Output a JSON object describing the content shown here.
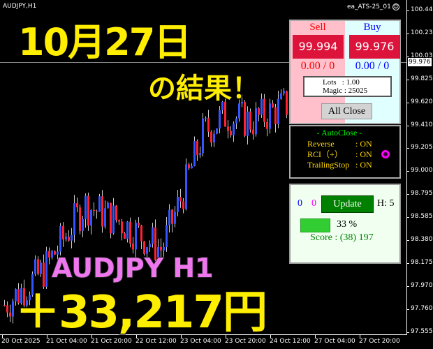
{
  "chart": {
    "symbol_label": "AUDJPY,H1",
    "ea_label": "ea_ATS-25_01",
    "ea_status_icon": "sad-face-icon",
    "current_price": "99.976",
    "price_ticks": [
      "100.445",
      "100.235",
      "100.030",
      "99.825",
      "99.620",
      "99.410",
      "99.205",
      "99.000",
      "98.795",
      "98.585",
      "98.380",
      "98.175",
      "97.970",
      "97.760",
      "97.555"
    ],
    "time_ticks": [
      "20 Oct 2025",
      "21 Oct 04:00",
      "21 Oct 20:00",
      "22 Oct 12:00",
      "23 Oct 04:00",
      "23 Oct 20:00",
      "24 Oct 12:00",
      "27 Oct 04:00",
      "27 Oct 20:00"
    ],
    "up_color": "#3355ff",
    "down_color": "#ff2233"
  },
  "overlay": {
    "date": "10月27日",
    "result": "の結果！",
    "pair": "AUDJPY H1",
    "profit": "＋33,217円"
  },
  "trade_panel": {
    "sell_label": "Sell",
    "buy_label": "Buy",
    "sell_price": "99.994",
    "buy_price": "99.976",
    "sell_pl": "0.00 / 0",
    "buy_pl": "0.00 / 0",
    "lots": "Lots   : 1.00",
    "magic": "Magic : 25025",
    "all_close": "All Close"
  },
  "autoclose_panel": {
    "title": "- AutoClose -",
    "rows": [
      {
        "label": "Reverse",
        "value": ": ON"
      },
      {
        "label": "RCI（+）",
        "value": ": ON"
      },
      {
        "label": "TrailingStop",
        "value": ": ON"
      }
    ],
    "indicator_color": "#ff00ff"
  },
  "score_panel": {
    "count_blue": "0",
    "count_magenta": "0",
    "update": "Update",
    "h_label": "H: 5",
    "progress_percent": 33,
    "progress_label": "33 %",
    "score": "Score : (38) 197"
  }
}
